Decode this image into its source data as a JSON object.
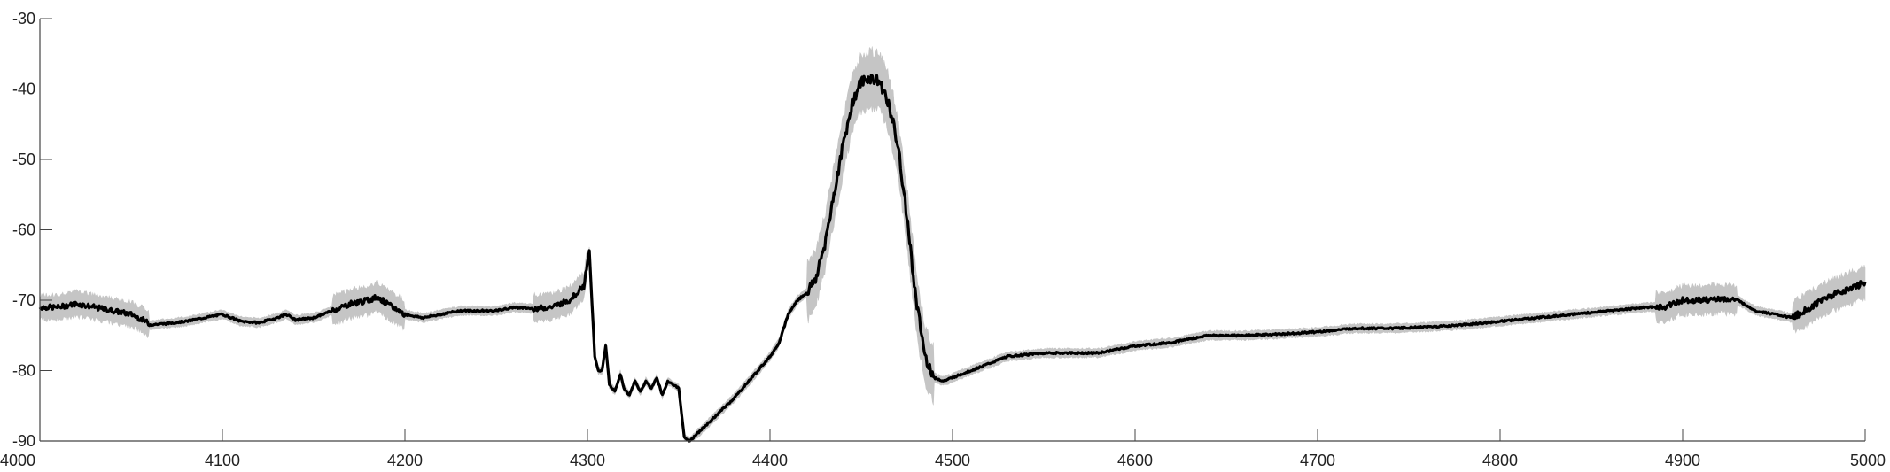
{
  "chart_data": {
    "type": "line",
    "title": "",
    "xlabel": "",
    "ylabel": "",
    "xlim": [
      4000,
      5000
    ],
    "ylim": [
      -90,
      -30
    ],
    "grid": false,
    "legend": "none",
    "xticks": [
      4000,
      4100,
      4200,
      4300,
      4400,
      4500,
      4600,
      4700,
      4800,
      4900,
      5000
    ],
    "xtick_labels": [
      "4000",
      "4100",
      "4200",
      "4300",
      "4400",
      "4500",
      "4600",
      "4700",
      "4800",
      "4900",
      "5000"
    ],
    "yticks": [
      -90,
      -80,
      -70,
      -60,
      -50,
      -40,
      -30
    ],
    "ytick_labels": [
      "-90",
      "-80",
      "-70",
      "-60",
      "-50",
      "-40",
      "-30"
    ],
    "colors": {
      "mean_line": "#000000",
      "band": "#bbbbbb",
      "axis": "#444444",
      "text": "#222222"
    },
    "series": [
      {
        "role": "mean",
        "x": [
          4000,
          4010,
          4020,
          4030,
          4040,
          4050,
          4058,
          4060,
          4070,
          4080,
          4090,
          4100,
          4110,
          4120,
          4130,
          4135,
          4140,
          4150,
          4160,
          4170,
          4180,
          4185,
          4190,
          4200,
          4210,
          4220,
          4230,
          4240,
          4250,
          4260,
          4270,
          4280,
          4290,
          4298,
          4301,
          4304,
          4306,
          4308,
          4310,
          4312,
          4315,
          4318,
          4320,
          4323,
          4326,
          4329,
          4332,
          4335,
          4338,
          4341,
          4344,
          4347,
          4350,
          4353,
          4356,
          4360,
          4370,
          4380,
          4390,
          4400,
          4405,
          4410,
          4415,
          4420,
          4425,
          4430,
          4435,
          4440,
          4445,
          4450,
          4455,
          4460,
          4465,
          4470,
          4475,
          4480,
          4485,
          4490,
          4495,
          4500,
          4510,
          4520,
          4530,
          4550,
          4580,
          4600,
          4620,
          4640,
          4660,
          4680,
          4700,
          4720,
          4740,
          4760,
          4780,
          4800,
          4820,
          4840,
          4860,
          4880,
          4890,
          4900,
          4910,
          4920,
          4930,
          4940,
          4950,
          4960,
          4970,
          4980,
          4990,
          5000
        ],
        "y": [
          -71,
          -71,
          -70.5,
          -71,
          -71.5,
          -72,
          -73,
          -73.5,
          -73.3,
          -73,
          -72.5,
          -72,
          -73,
          -73.2,
          -72.5,
          -72,
          -72.8,
          -72.5,
          -71.5,
          -70.5,
          -70,
          -69.5,
          -70.5,
          -72,
          -72.5,
          -72,
          -71.5,
          -71.5,
          -71.5,
          -71,
          -71.2,
          -71,
          -70,
          -68,
          -63,
          -78,
          -80,
          -80,
          -76.5,
          -82,
          -83,
          -80.5,
          -82.5,
          -83.5,
          -81.5,
          -83,
          -81.5,
          -82.5,
          -81,
          -83.5,
          -81.5,
          -82,
          -82.5,
          -89.5,
          -90,
          -89,
          -86.5,
          -84,
          -81,
          -78,
          -76,
          -72,
          -70,
          -69,
          -67,
          -62,
          -55,
          -48,
          -42,
          -39,
          -38.5,
          -39,
          -42,
          -48,
          -58,
          -70,
          -78,
          -81,
          -81.5,
          -81,
          -80,
          -79,
          -78,
          -77.5,
          -77.5,
          -76.5,
          -76,
          -75,
          -75,
          -74.8,
          -74.5,
          -74,
          -74,
          -73.8,
          -73.5,
          -73,
          -72.5,
          -72,
          -71.5,
          -71,
          -71,
          -70,
          -70,
          -69.8,
          -70,
          -71.5,
          -72,
          -72.5,
          -71,
          -69.5,
          -68.5,
          -67.5
        ]
      }
    ]
  }
}
